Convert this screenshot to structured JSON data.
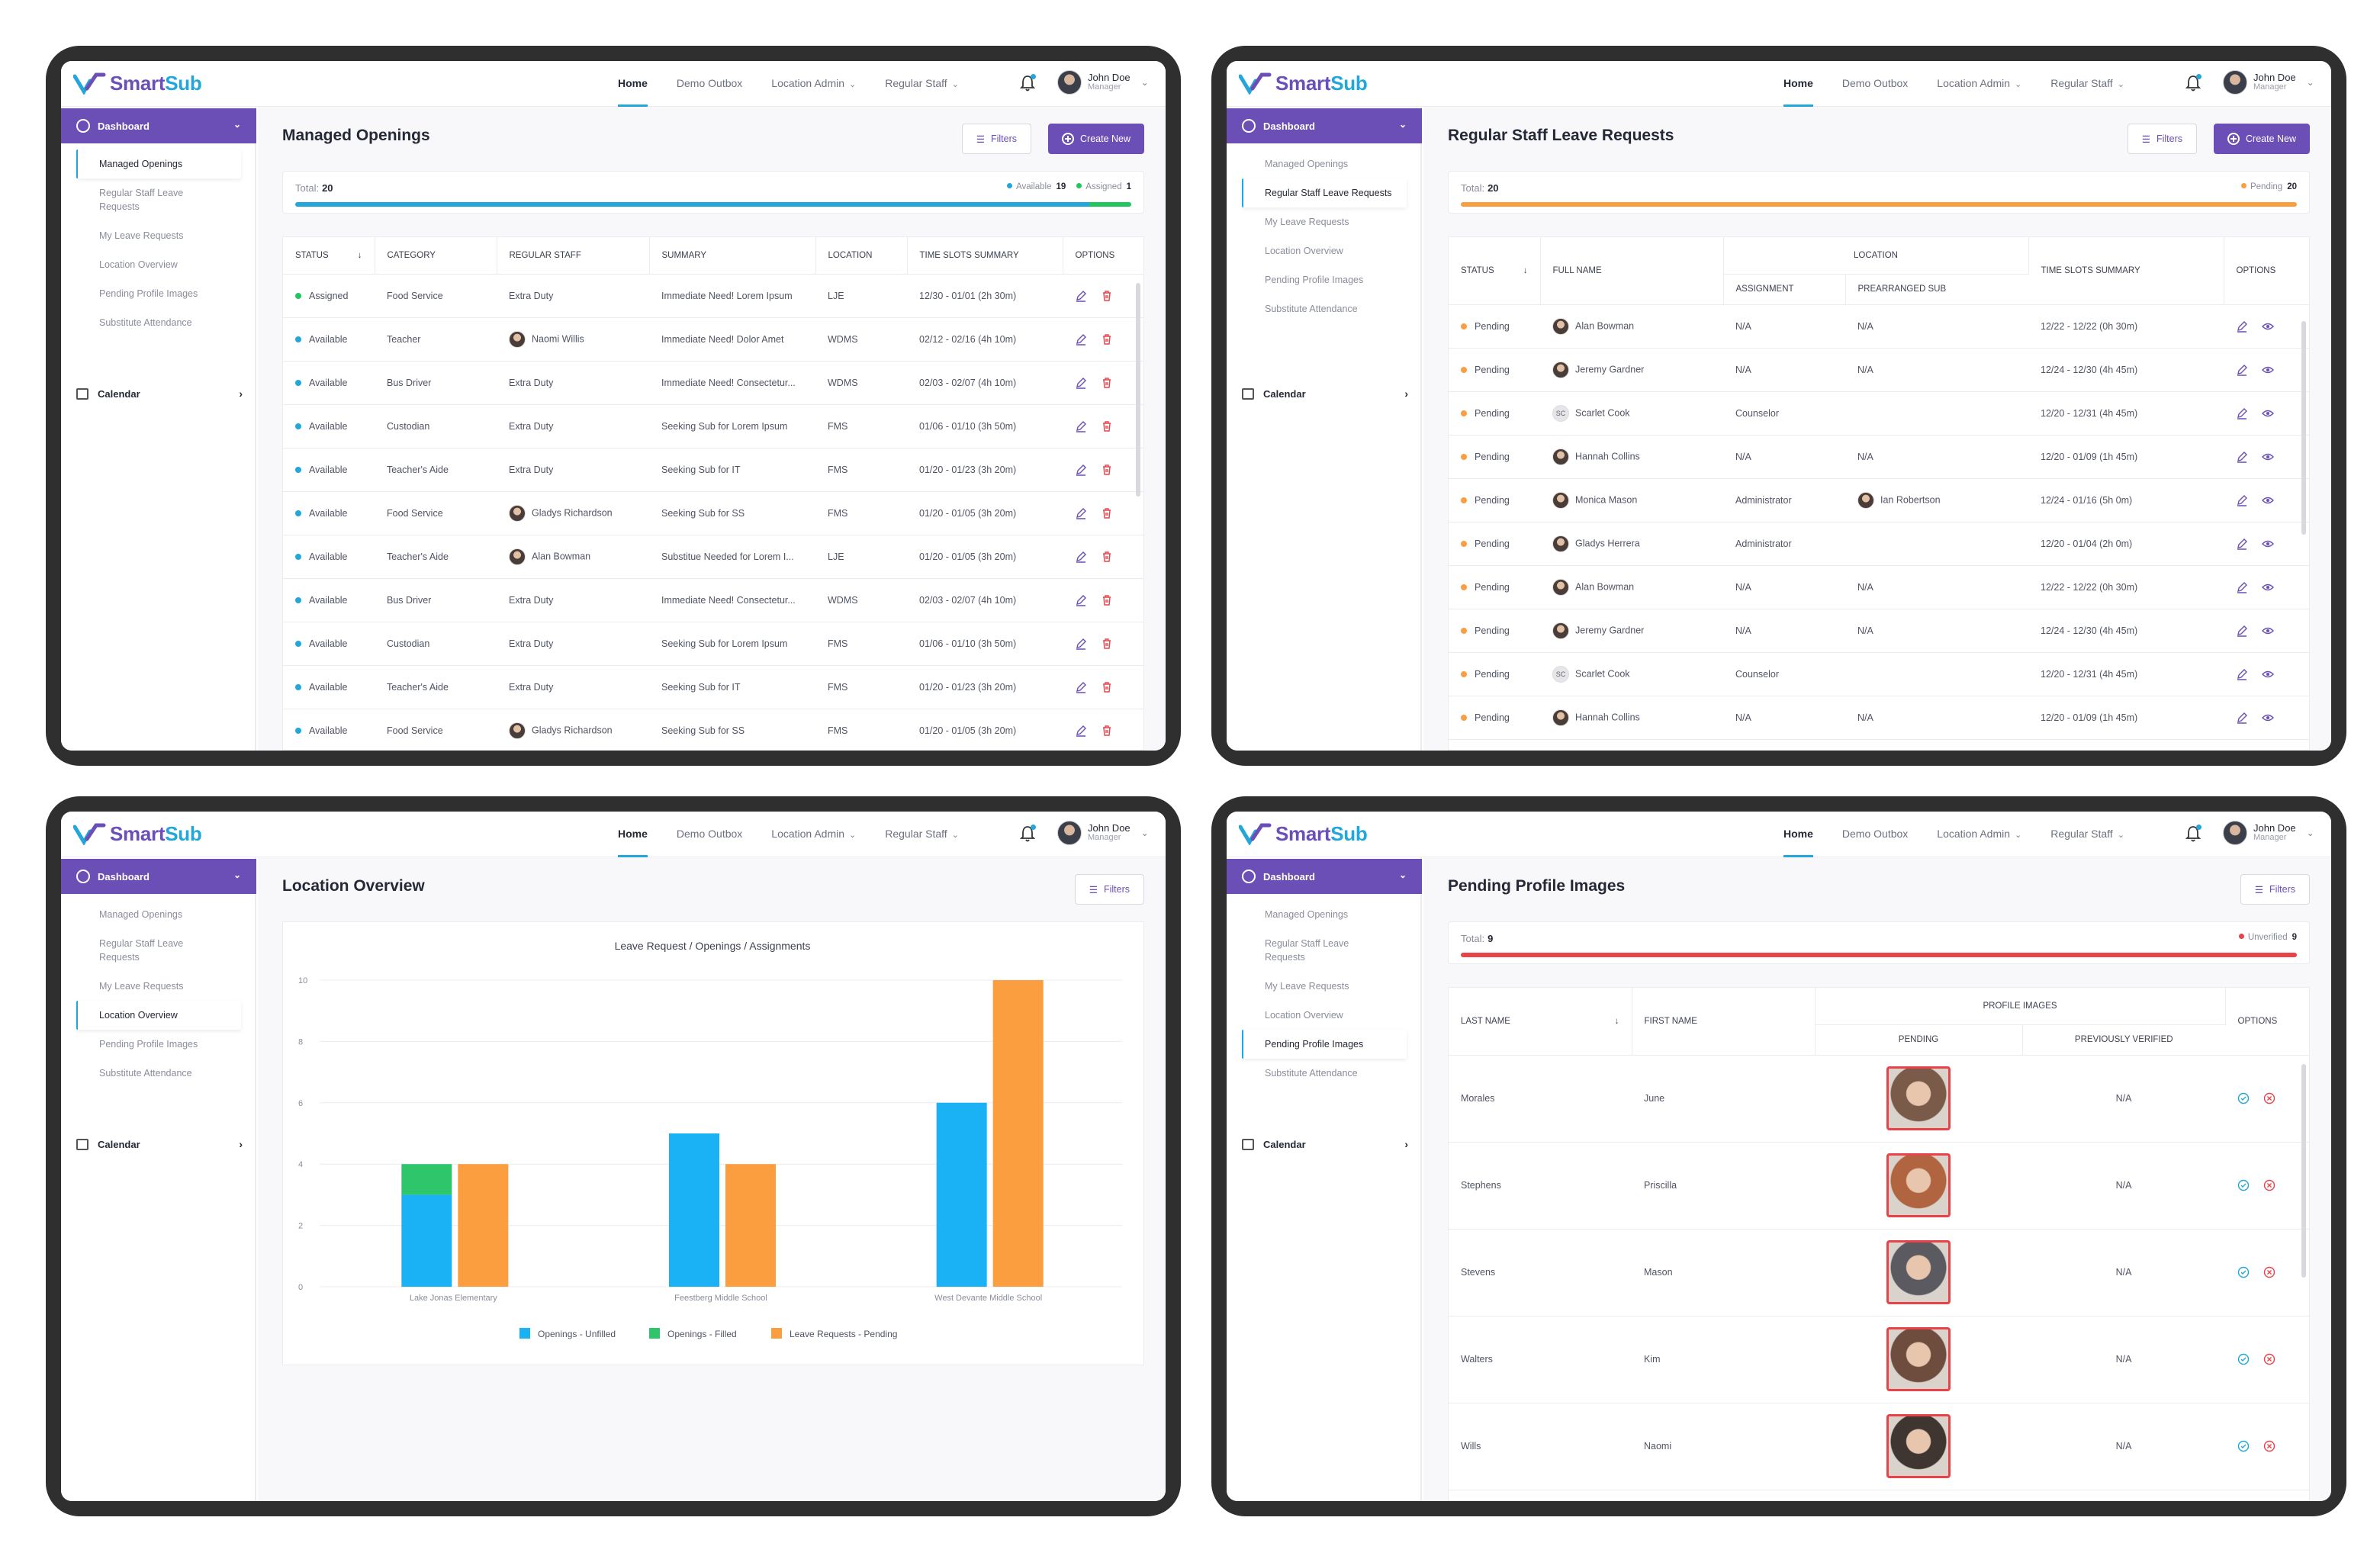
{
  "app": {
    "brand_a": "Smart",
    "brand_b": "Sub",
    "nav": [
      "Home",
      "Demo Outbox",
      "Location Admin",
      "Regular Staff"
    ],
    "user": {
      "name": "John Doe",
      "role": "Manager"
    },
    "sidebar": {
      "dashboard": "Dashboard",
      "items": [
        "Managed Openings",
        "Regular Staff Leave Requests",
        "My Leave Requests",
        "Location Overview",
        "Pending Profile Images",
        "Substitute Attendance"
      ],
      "calendar": "Calendar"
    }
  },
  "colors": {
    "purple": "#6c4fb6",
    "blue": "#23a6d9",
    "green": "#22c55e",
    "orange": "#fb9e3f",
    "red": "#e9434a"
  },
  "screens": {
    "openings": {
      "title": "Managed Openings",
      "filters": "Filters",
      "create": "Create New",
      "total_label": "Total:",
      "total": "20",
      "available_label": "Available",
      "available": "19",
      "assigned_label": "Assigned",
      "assigned": "1",
      "available_fraction": 0.95,
      "columns": [
        "Status",
        "Category",
        "Regular Staff",
        "Summary",
        "Location",
        "Time Slots Summary",
        "Options"
      ],
      "rows": [
        [
          "Assigned",
          "Food Service",
          "Extra Duty",
          "Immediate Need! Lorem Ipsum",
          "LJE",
          "12/30 - 01/01 (2h 30m)"
        ],
        [
          "Available",
          "Teacher",
          "Naomi Willis",
          "Immediate Need! Dolor Amet",
          "WDMS",
          "02/12 - 02/16 (4h 10m)"
        ],
        [
          "Available",
          "Bus Driver",
          "Extra Duty",
          "Immediate Need! Consectetur...",
          "WDMS",
          "02/03 - 02/07 (4h 10m)"
        ],
        [
          "Available",
          "Custodian",
          "Extra Duty",
          "Seeking Sub for Lorem Ipsum",
          "FMS",
          "01/06 - 01/10 (3h 50m)"
        ],
        [
          "Available",
          "Teacher's Aide",
          "Extra Duty",
          "Seeking Sub for IT",
          "FMS",
          "01/20 - 01/23 (3h 20m)"
        ],
        [
          "Available",
          "Food Service",
          "Gladys Richardson",
          "Seeking Sub for SS",
          "FMS",
          "01/20 - 01/05 (3h 20m)"
        ],
        [
          "Available",
          "Teacher's Aide",
          "Alan Bowman",
          "Substitue Needed for Lorem I...",
          "LJE",
          "01/20 - 01/05 (3h 20m)"
        ],
        [
          "Available",
          "Bus Driver",
          "Extra Duty",
          "Immediate Need! Consectetur...",
          "WDMS",
          "02/03 - 02/07 (4h 10m)"
        ],
        [
          "Available",
          "Custodian",
          "Extra Duty",
          "Seeking Sub for Lorem Ipsum",
          "FMS",
          "01/06 - 01/10 (3h 50m)"
        ],
        [
          "Available",
          "Teacher's Aide",
          "Extra Duty",
          "Seeking Sub for IT",
          "FMS",
          "01/20 - 01/23 (3h 20m)"
        ],
        [
          "Available",
          "Food Service",
          "Gladys Richardson",
          "Seeking Sub for SS",
          "FMS",
          "01/20 - 01/05 (3h 20m)"
        ]
      ]
    },
    "leave": {
      "title": "Regular Staff Leave Requests",
      "filters": "Filters",
      "create": "Create New",
      "total_label": "Total:",
      "total": "20",
      "pending_label": "Pending",
      "pending": "20",
      "columns": {
        "status": "Status",
        "full_name": "Full Name",
        "location": "Location",
        "assignment": "Assignment",
        "prearranged": "Prearranged Sub",
        "time": "Time Slots Summary",
        "options": "Options"
      },
      "rows": [
        [
          "Pending",
          "Alan Bowman",
          "N/A",
          "N/A",
          "12/22 - 12/22 (0h 30m)"
        ],
        [
          "Pending",
          "Jeremy Gardner",
          "N/A",
          "N/A",
          "12/24 - 12/30 (4h 45m)"
        ],
        [
          "Pending",
          "Scarlet Cook",
          "Counselor",
          "",
          "12/20 - 12/31 (4h 45m)"
        ],
        [
          "Pending",
          "Hannah Collins",
          "N/A",
          "N/A",
          "12/20 - 01/09 (1h 45m)"
        ],
        [
          "Pending",
          "Monica Mason",
          "Administrator",
          "Ian Robertson",
          "12/24 - 01/16 (5h 0m)"
        ],
        [
          "Pending",
          "Gladys Herrera",
          "Administrator",
          "",
          "12/20 - 01/04 (2h 0m)"
        ],
        [
          "Pending",
          "Alan Bowman",
          "N/A",
          "N/A",
          "12/22 - 12/22 (0h 30m)"
        ],
        [
          "Pending",
          "Jeremy Gardner",
          "N/A",
          "N/A",
          "12/24 - 12/30 (4h 45m)"
        ],
        [
          "Pending",
          "Scarlet Cook",
          "Counselor",
          "",
          "12/20 - 12/31 (4h 45m)"
        ],
        [
          "Pending",
          "Hannah Collins",
          "N/A",
          "N/A",
          "12/20 - 01/09 (1h 45m)"
        ]
      ]
    },
    "location": {
      "title": "Location Overview",
      "filters": "Filters"
    },
    "images": {
      "title": "Pending Profile Images",
      "filters": "Filters",
      "total_label": "Total:",
      "total": "9",
      "unverified_label": "Unverified",
      "unverified": "9",
      "columns": {
        "last": "Last Name",
        "first": "First Name",
        "profile": "Profile Images",
        "pending": "Pending",
        "verified": "Previously Verified",
        "options": "Options"
      },
      "rows": [
        [
          "Morales",
          "June",
          "N/A"
        ],
        [
          "Stephens",
          "Priscilla",
          "N/A"
        ],
        [
          "Stevens",
          "Mason",
          "N/A"
        ],
        [
          "Walters",
          "Kim",
          "N/A"
        ],
        [
          "Wills",
          "Naomi",
          "N/A"
        ]
      ]
    }
  },
  "chart_data": {
    "type": "bar",
    "title": "Leave Request / Openings / Assignments",
    "categories": [
      "Lake Jonas Elementary",
      "Feestberg Middle School",
      "West Devante Middle School"
    ],
    "series": [
      {
        "name": "Openings - Unfilled",
        "values": [
          3,
          5,
          6
        ],
        "color": "#1ab2f5",
        "stack": "openings"
      },
      {
        "name": "Openings - Filled",
        "values": [
          1,
          0,
          0
        ],
        "color": "#2fc66b",
        "stack": "openings"
      },
      {
        "name": "Leave Requests - Pending",
        "values": [
          4,
          4,
          10
        ],
        "color": "#fb9e3f",
        "stack": "leave"
      }
    ],
    "ylim": [
      0,
      10
    ],
    "yticks": [
      "0",
      "2",
      "4",
      "6",
      "8",
      "10"
    ],
    "grid": true,
    "legend": "bottom"
  }
}
